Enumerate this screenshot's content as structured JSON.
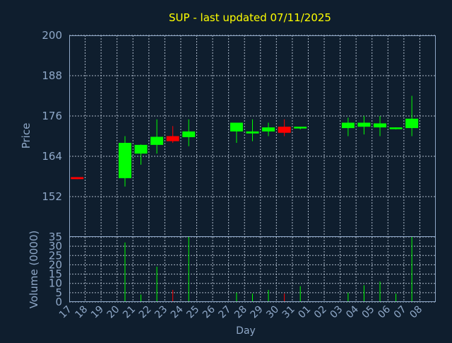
{
  "chart_data": [
    {
      "type": "candlestick",
      "title": "SUP - last updated 07/11/2025",
      "ylabel": "Price",
      "ylim": [
        140,
        200
      ],
      "yticks": [
        152,
        164,
        176,
        188,
        200
      ],
      "grid": true,
      "colors": {
        "up": "#00ff00",
        "down": "#ff0000",
        "background": "#0f1e2e",
        "text": "#8fa8c8",
        "title": "#ffff00"
      },
      "candles": [
        {
          "x": "17",
          "open": 157.8,
          "close": 157.2,
          "high": 157.8,
          "low": 157.2
        },
        {
          "x": "20",
          "open": 157.5,
          "close": 168.0,
          "high": 170.0,
          "low": 155.0
        },
        {
          "x": "21",
          "open": 164.8,
          "close": 167.4,
          "high": 167.5,
          "low": 161.5
        },
        {
          "x": "22",
          "open": 167.4,
          "close": 169.8,
          "high": 175.0,
          "low": 164.8
        },
        {
          "x": "23",
          "open": 170.0,
          "close": 168.5,
          "high": 173.0,
          "low": 168.0
        },
        {
          "x": "24",
          "open": 169.7,
          "close": 171.4,
          "high": 175.0,
          "low": 167.0
        },
        {
          "x": "27",
          "open": 171.4,
          "close": 174.0,
          "high": 174.0,
          "low": 168.0
        },
        {
          "x": "28",
          "open": 170.8,
          "close": 171.4,
          "high": 175.0,
          "low": 168.5
        },
        {
          "x": "29",
          "open": 171.4,
          "close": 172.6,
          "high": 174.0,
          "low": 170.0
        },
        {
          "x": "30",
          "open": 172.8,
          "close": 171.0,
          "high": 175.0,
          "low": 170.0
        },
        {
          "x": "31",
          "open": 172.4,
          "close": 172.8,
          "high": 172.8,
          "low": 172.0
        },
        {
          "x": "03",
          "open": 172.4,
          "close": 174.0,
          "high": 175.5,
          "low": 170.0
        },
        {
          "x": "04",
          "open": 172.8,
          "close": 174.0,
          "high": 176.0,
          "low": 170.5
        },
        {
          "x": "05",
          "open": 172.6,
          "close": 173.8,
          "high": 176.0,
          "low": 170.0
        },
        {
          "x": "06",
          "open": 172.2,
          "close": 172.6,
          "high": 172.6,
          "low": 172.0
        },
        {
          "x": "07",
          "open": 172.4,
          "close": 175.2,
          "high": 182.0,
          "low": 170.0
        }
      ]
    },
    {
      "type": "bar",
      "xlabel": "Day",
      "ylabel": "Volume (0000)",
      "ylim": [
        0,
        35
      ],
      "yticks": [
        0,
        5,
        10,
        15,
        20,
        25,
        30,
        35
      ],
      "categories": [
        "17",
        "18",
        "19",
        "20",
        "21",
        "22",
        "23",
        "24",
        "25",
        "26",
        "27",
        "28",
        "29",
        "30",
        "31",
        "01",
        "02",
        "03",
        "04",
        "05",
        "06",
        "07",
        "08"
      ],
      "values": [
        0,
        0,
        0,
        32,
        4,
        19,
        6.5,
        35,
        0,
        0,
        5,
        4.5,
        6.5,
        4.5,
        8.5,
        0,
        0,
        5,
        9,
        11,
        4.5,
        35,
        0
      ],
      "bar_colors": [
        "#00ff00",
        "#00ff00",
        "#00ff00",
        "#00ff00",
        "#00ff00",
        "#00ff00",
        "#ff0000",
        "#00ff00",
        "#00ff00",
        "#00ff00",
        "#00ff00",
        "#00ff00",
        "#00ff00",
        "#ff0000",
        "#00ff00",
        "#00ff00",
        "#00ff00",
        "#00ff00",
        "#00ff00",
        "#00ff00",
        "#00ff00",
        "#00ff00",
        "#00ff00"
      ],
      "grid": true
    }
  ]
}
